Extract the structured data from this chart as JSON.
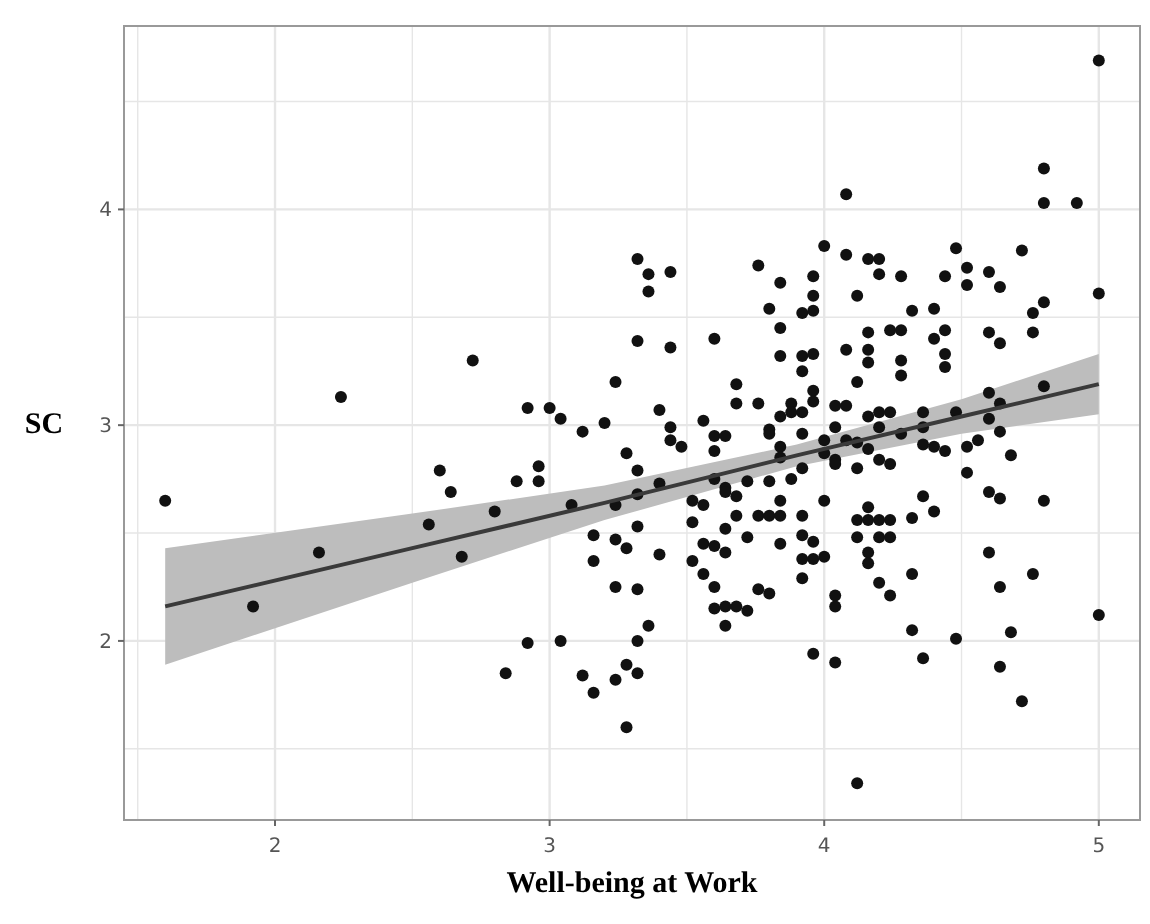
{
  "chart_data": {
    "type": "scatter",
    "xlabel": "Well-being at Work",
    "ylabel": "SC",
    "xlim": [
      1.45,
      5.15
    ],
    "ylim": [
      1.17,
      4.85
    ],
    "xticks": [
      {
        "value": 1.5,
        "label": null
      },
      2,
      {
        "value": 2.5,
        "label": null
      },
      3,
      {
        "value": 3.5,
        "label": null
      },
      4,
      {
        "value": 4.5,
        "label": null
      },
      5
    ],
    "yticks": [
      {
        "value": 1.5,
        "label": null
      },
      2,
      {
        "value": 2.5,
        "label": null
      },
      3,
      {
        "value": 3.5,
        "label": null
      },
      4,
      {
        "value": 4.5,
        "label": null
      }
    ],
    "grid": true,
    "series": [
      {
        "marker": "circle",
        "color": "#111111",
        "x": [
          1.6,
          1.92,
          2.16,
          2.24,
          2.72,
          2.6,
          2.64,
          2.56,
          2.68,
          2.8,
          2.84,
          2.88,
          2.92,
          2.92,
          2.96,
          2.96,
          3.0,
          3.04,
          3.04,
          3.08,
          3.12,
          3.12,
          3.16,
          3.16,
          3.16,
          3.2,
          3.24,
          3.24,
          3.24,
          3.24,
          3.24,
          3.28,
          3.28,
          3.28,
          3.28,
          3.32,
          3.32,
          3.32,
          3.32,
          3.32,
          3.32,
          3.32,
          3.32,
          3.36,
          3.36,
          3.36,
          3.4,
          3.4,
          3.4,
          3.44,
          3.44,
          3.44,
          3.44,
          3.48,
          3.52,
          3.52,
          3.52,
          3.56,
          3.56,
          3.56,
          3.56,
          3.6,
          3.6,
          3.6,
          3.6,
          3.6,
          3.6,
          3.6,
          3.64,
          3.64,
          3.64,
          3.64,
          3.64,
          3.64,
          3.64,
          3.68,
          3.68,
          3.68,
          3.68,
          3.68,
          3.72,
          3.72,
          3.72,
          3.76,
          3.76,
          3.76,
          3.76,
          3.8,
          3.8,
          3.8,
          3.8,
          3.8,
          3.8,
          3.84,
          3.84,
          3.84,
          3.84,
          3.84,
          3.84,
          3.84,
          3.84,
          3.84,
          3.88,
          3.88,
          3.88,
          3.92,
          3.92,
          3.92,
          3.92,
          3.92,
          3.92,
          3.92,
          3.92,
          3.92,
          3.92,
          3.96,
          3.96,
          3.96,
          3.96,
          3.96,
          3.96,
          3.96,
          3.96,
          3.96,
          4.0,
          4.0,
          4.0,
          4.0,
          4.0,
          4.04,
          4.04,
          4.04,
          4.04,
          4.04,
          4.04,
          4.04,
          4.08,
          4.08,
          4.08,
          4.08,
          4.08,
          4.12,
          4.12,
          4.12,
          4.12,
          4.12,
          4.12,
          4.12,
          4.16,
          4.16,
          4.16,
          4.16,
          4.16,
          4.16,
          4.16,
          4.16,
          4.16,
          4.16,
          4.2,
          4.2,
          4.2,
          4.2,
          4.2,
          4.2,
          4.2,
          4.2,
          4.24,
          4.24,
          4.24,
          4.24,
          4.24,
          4.24,
          4.28,
          4.28,
          4.28,
          4.28,
          4.28,
          4.32,
          4.32,
          4.32,
          4.32,
          4.36,
          4.36,
          4.36,
          4.36,
          4.36,
          4.4,
          4.4,
          4.4,
          4.4,
          4.44,
          4.44,
          4.44,
          4.44,
          4.44,
          4.48,
          4.48,
          4.48,
          4.52,
          4.52,
          4.52,
          4.52,
          4.56,
          4.6,
          4.6,
          4.6,
          4.6,
          4.6,
          4.6,
          4.64,
          4.64,
          4.64,
          4.64,
          4.64,
          4.64,
          4.64,
          4.68,
          4.68,
          4.72,
          4.72,
          4.76,
          4.76,
          4.76,
          4.8,
          4.8,
          4.8,
          4.8,
          4.8,
          4.92,
          5.0,
          5.0,
          5.0
        ],
        "values": [
          2.65,
          2.16,
          2.41,
          3.13,
          3.3,
          2.79,
          2.69,
          2.54,
          2.39,
          2.6,
          1.85,
          2.74,
          3.08,
          1.99,
          2.81,
          2.74,
          3.08,
          3.03,
          2.0,
          2.63,
          2.97,
          1.84,
          2.49,
          2.37,
          1.76,
          3.01,
          3.2,
          2.63,
          2.47,
          2.25,
          1.82,
          2.87,
          2.43,
          1.89,
          1.6,
          3.77,
          3.39,
          2.79,
          2.68,
          2.53,
          2.24,
          2.0,
          1.85,
          3.7,
          3.62,
          2.07,
          3.07,
          2.73,
          2.4,
          3.71,
          3.36,
          2.99,
          2.93,
          2.9,
          2.65,
          2.55,
          2.37,
          3.02,
          2.63,
          2.45,
          2.31,
          3.4,
          2.95,
          2.88,
          2.75,
          2.44,
          2.25,
          2.15,
          2.95,
          2.71,
          2.69,
          2.52,
          2.41,
          2.16,
          2.07,
          3.19,
          3.1,
          2.67,
          2.58,
          2.16,
          2.74,
          2.48,
          2.14,
          3.74,
          3.1,
          2.58,
          2.24,
          3.54,
          2.98,
          2.96,
          2.74,
          2.58,
          2.22,
          3.66,
          3.45,
          3.32,
          3.04,
          2.9,
          2.85,
          2.65,
          2.58,
          2.45,
          3.1,
          3.06,
          2.75,
          3.52,
          3.32,
          3.25,
          3.06,
          2.96,
          2.8,
          2.58,
          2.49,
          2.38,
          2.29,
          3.69,
          3.6,
          3.53,
          3.33,
          3.16,
          3.11,
          2.46,
          2.38,
          1.94,
          3.83,
          2.93,
          2.87,
          2.65,
          2.39,
          3.09,
          2.99,
          2.84,
          2.82,
          2.21,
          2.16,
          1.9,
          4.07,
          3.79,
          3.35,
          3.09,
          2.93,
          3.6,
          3.2,
          2.92,
          2.8,
          2.56,
          2.48,
          1.34,
          3.77,
          3.43,
          3.35,
          3.29,
          3.04,
          2.89,
          2.62,
          2.56,
          2.41,
          2.36,
          3.77,
          3.7,
          3.06,
          2.99,
          2.84,
          2.56,
          2.48,
          2.27,
          3.44,
          3.06,
          2.82,
          2.56,
          2.48,
          2.21,
          3.69,
          3.44,
          3.3,
          3.23,
          2.96,
          3.53,
          2.57,
          2.31,
          2.05,
          3.06,
          2.99,
          2.91,
          2.67,
          1.92,
          3.54,
          3.4,
          2.9,
          2.6,
          3.69,
          3.44,
          3.33,
          3.27,
          2.88,
          3.82,
          3.06,
          2.01,
          3.73,
          3.65,
          2.9,
          2.78,
          2.93,
          3.71,
          3.43,
          3.15,
          3.03,
          2.69,
          2.41,
          3.64,
          3.38,
          3.1,
          2.97,
          2.66,
          2.25,
          1.88,
          2.86,
          2.04,
          3.81,
          1.72,
          3.52,
          3.43,
          2.31,
          4.19,
          4.03,
          3.57,
          3.18,
          2.65,
          4.03,
          4.69,
          3.61,
          2.12
        ]
      },
      {
        "type": "line",
        "color": "#3a3a3a",
        "x": [
          1.6,
          2.5,
          3.2,
          3.9,
          4.5,
          5.0
        ],
        "values": [
          2.16,
          2.43,
          2.64,
          2.86,
          3.04,
          3.19
        ],
        "lower": [
          1.89,
          2.27,
          2.56,
          2.81,
          2.96,
          3.05
        ],
        "upper": [
          2.43,
          2.59,
          2.72,
          2.91,
          3.12,
          3.33
        ]
      }
    ]
  }
}
